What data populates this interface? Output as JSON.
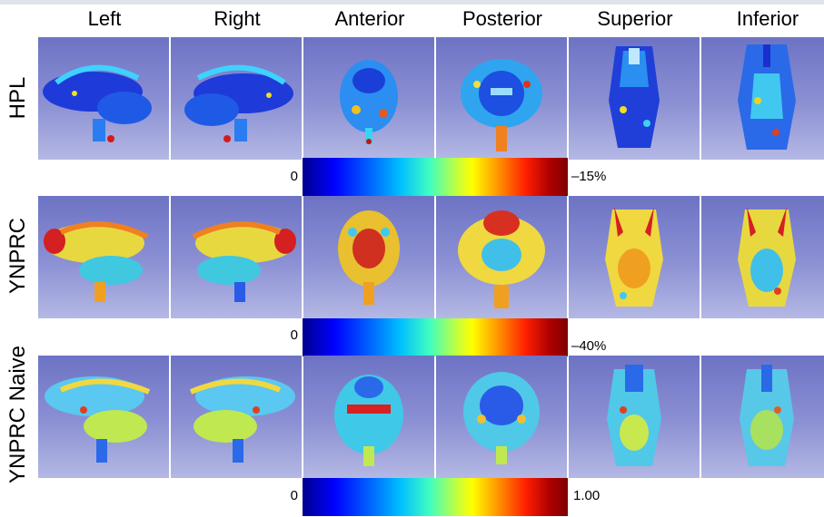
{
  "columns": [
    "Left",
    "Right",
    "Anterior",
    "Posterior",
    "Superior",
    "Inferior"
  ],
  "rows": [
    {
      "label": "HPL",
      "colorbar": {
        "min": "0",
        "max": "–15%"
      }
    },
    {
      "label": "YNPRC",
      "colorbar": {
        "min": "0",
        "max": "–40%"
      }
    },
    {
      "label": "YNPRC Naive",
      "colorbar": {
        "min": "0",
        "max": "1.00"
      }
    }
  ],
  "colors": {
    "background_top": "#6d73c4",
    "background_bottom": "#b4b8e4",
    "colormap": "jet"
  }
}
